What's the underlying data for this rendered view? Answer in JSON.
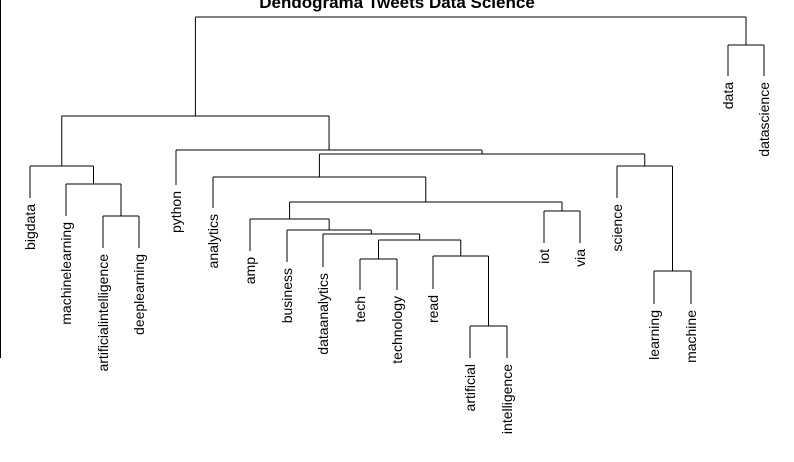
{
  "chart_data": {
    "type": "dendrogram",
    "title": "Dendograma Tweets Data Science",
    "leaves": [
      "bigdata",
      "machinelearning",
      "artificialintelligence",
      "deeplearning",
      "python",
      "analytics",
      "amp",
      "business",
      "dataanalytics",
      "tech",
      "technology",
      "read",
      "artificial",
      "intelligence",
      "iot",
      "via",
      "science",
      "learning",
      "machine",
      "data",
      "datascience"
    ],
    "y_axis_visible": false
  }
}
